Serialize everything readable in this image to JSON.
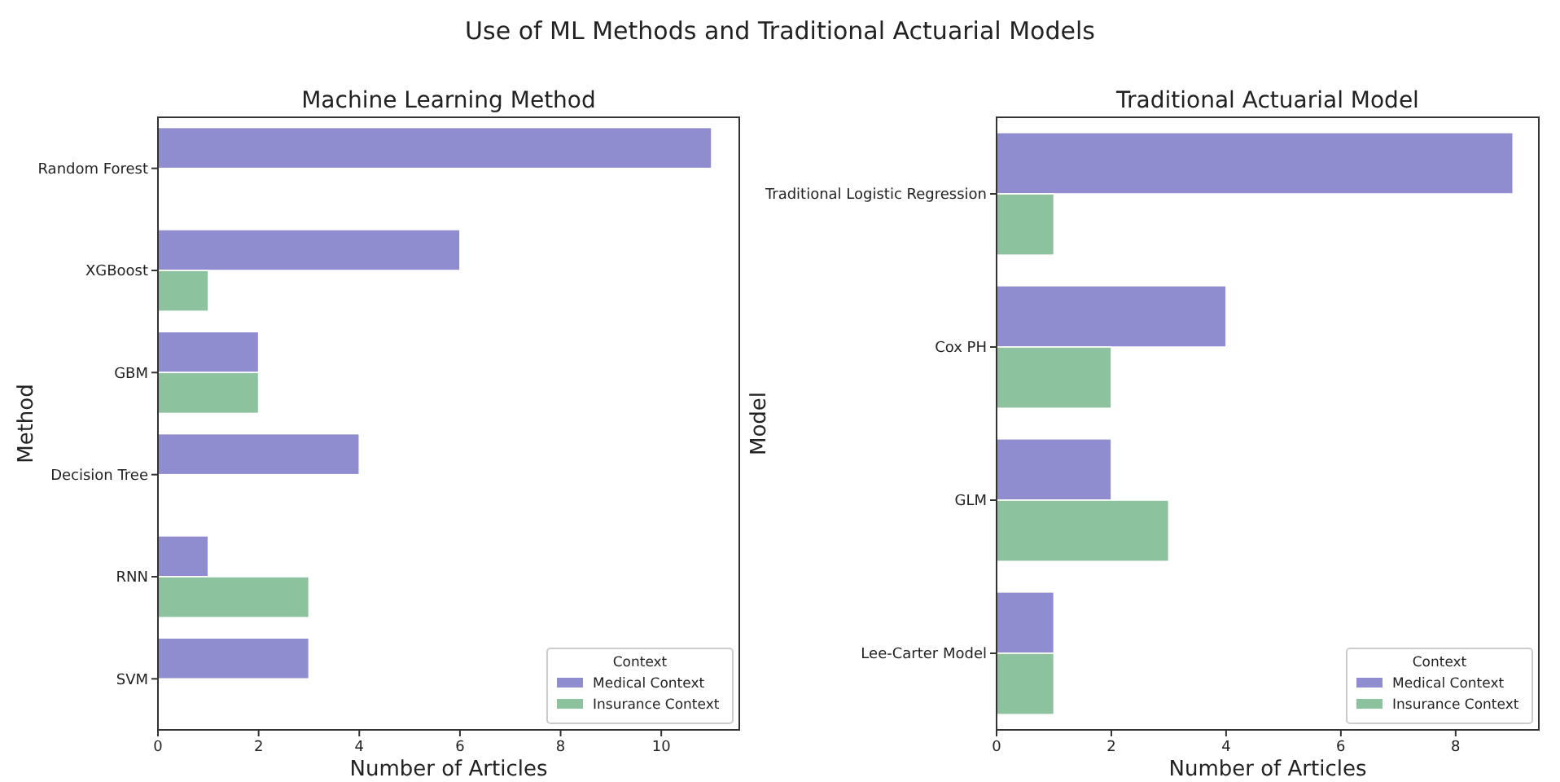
{
  "chart_data": [
    {
      "type": "bar",
      "orientation": "horizontal",
      "title": "Machine Learning Method",
      "annotations": [
        "Use of ML Methods and Traditional Actuarial Models"
      ],
      "xlabel": "Number of Articles",
      "ylabel": "Method",
      "legend_title": "Context",
      "legend": "bottom right",
      "grid": false,
      "categories": [
        "Random Forest",
        "XGBoost",
        "GBM",
        "Decision Tree",
        "RNN",
        "SVM"
      ],
      "series": [
        {
          "name": "Medical Context",
          "color": "#8f8dd0",
          "values": [
            11,
            6,
            2,
            4,
            1,
            3
          ]
        },
        {
          "name": "Insurance Context",
          "color": "#8cc29d",
          "values": [
            null,
            1,
            2,
            null,
            3,
            null
          ]
        }
      ],
      "xlim": [
        0,
        11.55
      ],
      "xticks": [
        0,
        2,
        4,
        6,
        8,
        10
      ]
    },
    {
      "type": "bar",
      "orientation": "horizontal",
      "title": "Traditional Actuarial Model",
      "xlabel": "Number of Articles",
      "ylabel": "Model",
      "legend_title": "Context",
      "legend": "bottom right",
      "grid": false,
      "categories": [
        "Traditional Logistic Regression",
        "Cox PH",
        "GLM",
        "Lee-Carter Model"
      ],
      "series": [
        {
          "name": "Medical Context",
          "color": "#8f8dd0",
          "values": [
            9,
            4,
            2,
            1
          ]
        },
        {
          "name": "Insurance Context",
          "color": "#8cc29d",
          "values": [
            1,
            2,
            3,
            1
          ]
        }
      ],
      "xlim": [
        0,
        9.45
      ],
      "xticks": [
        0,
        2,
        4,
        6,
        8
      ]
    }
  ]
}
